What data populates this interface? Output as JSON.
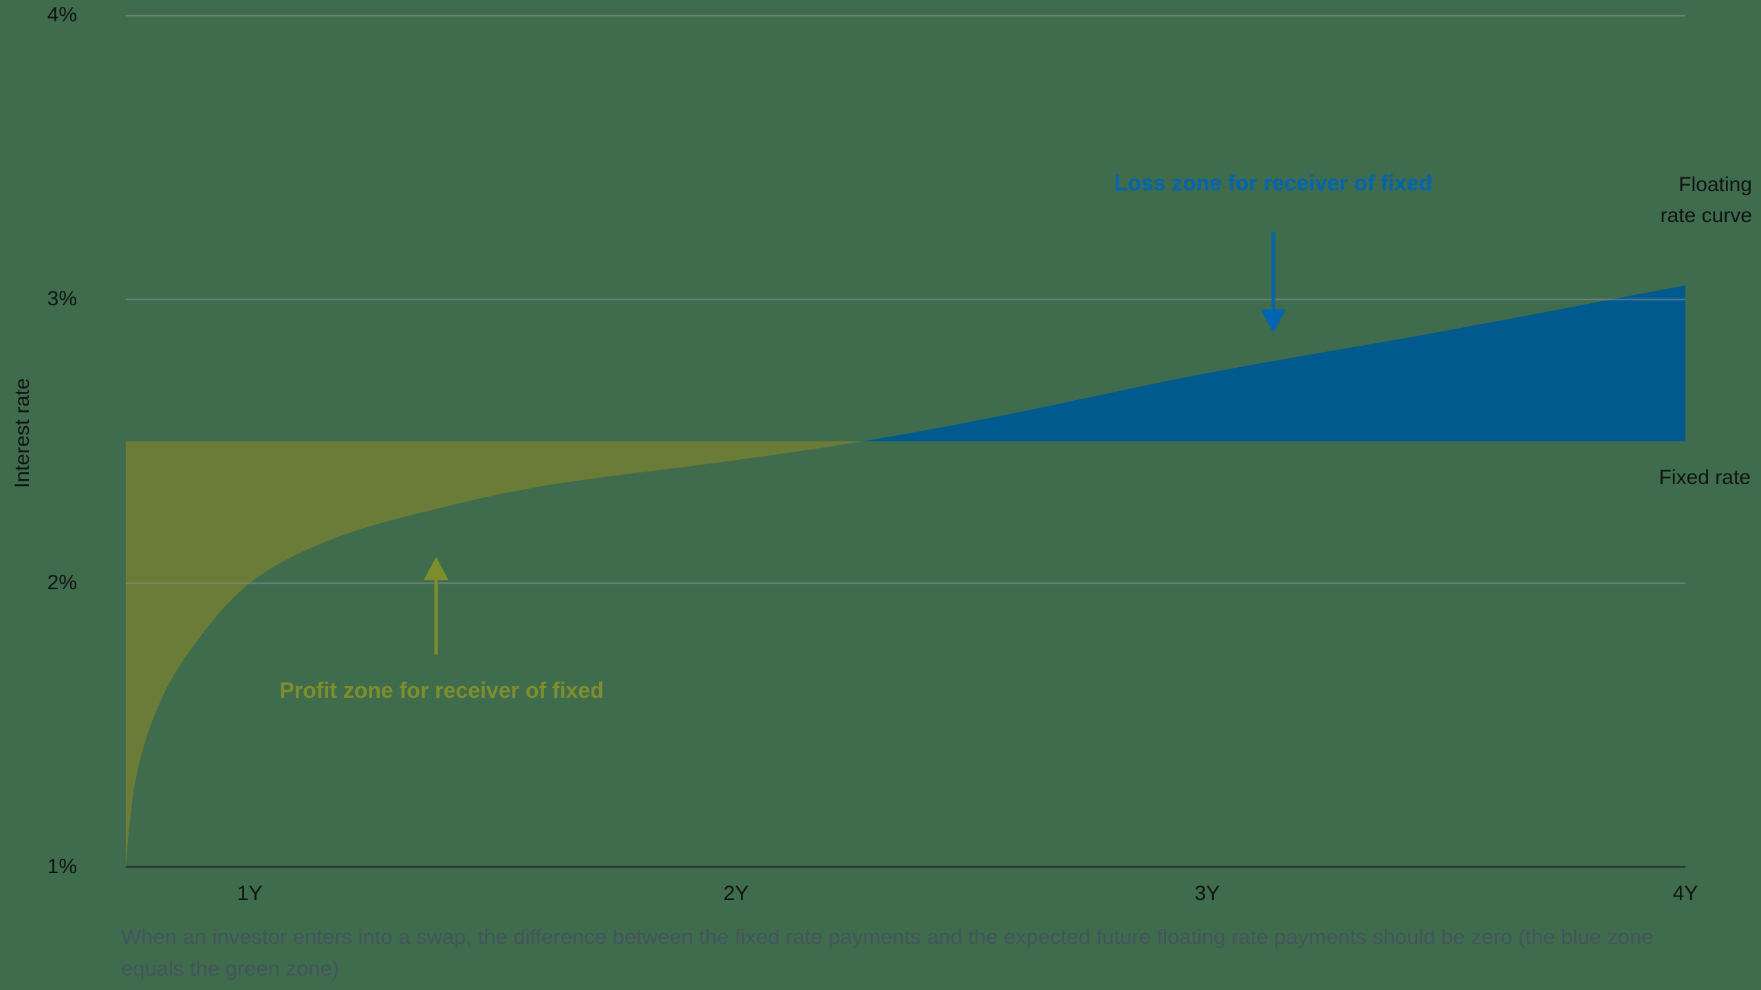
{
  "colors": {
    "background": "#3F6C4C",
    "green_zone": "#6B7B38",
    "green_label": "#7F8E2D",
    "blue_zone": "#005A8E",
    "blue_label": "#0064B0",
    "gridline": "#9090A0",
    "axis_line": "#2F3038",
    "text": "#101214",
    "caption": "#44545E"
  },
  "chart_data": {
    "type": "area",
    "title": "",
    "ylabel": "Interest rate",
    "xlabel": "",
    "ylim": [
      1,
      4
    ],
    "xlim": [
      0.741,
      4
    ],
    "grid": "horizontal",
    "y_tick_values": [
      1,
      2,
      3,
      4
    ],
    "y_tick_labels": [
      "1%",
      "2%",
      "3%",
      "4%"
    ],
    "x_tick_values": [
      1,
      2,
      3,
      4
    ],
    "x_tick_labels": [
      "1Y",
      "2Y",
      "3Y",
      "4Y"
    ],
    "fixed_rate": 2.5,
    "fixed_rate_label": "Fixed rate",
    "floating_curve_label": "Floating\nrate curve",
    "floating_curve": {
      "x": [
        0.741,
        0.76,
        0.8,
        0.87,
        1.0,
        1.18,
        1.41,
        1.64,
        2.0,
        2.28,
        2.57,
        3.0,
        3.5,
        4.0
      ],
      "y": [
        1.0,
        1.29,
        1.53,
        1.75,
        2.0,
        2.16,
        2.27,
        2.35,
        2.43,
        2.5,
        2.59,
        2.74,
        2.89,
        3.05
      ]
    },
    "crossing_x": 2.28,
    "zones": {
      "profit": {
        "label": "Profit zone for receiver of fixed"
      },
      "loss": {
        "label": "Loss zone for receiver of fixed"
      }
    },
    "caption": "When an investor enters into a swap, the difference between the fixed rate payments and the expected future floating rate payments should be zero (the blue zone equals the green zone)"
  }
}
